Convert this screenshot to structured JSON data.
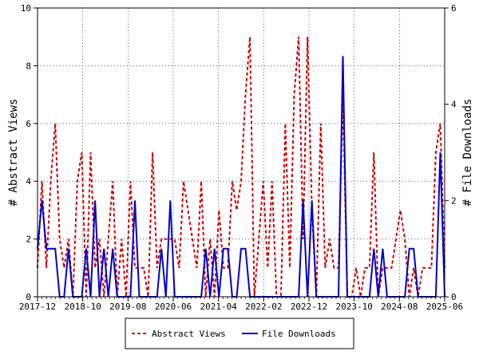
{
  "chart_data": {
    "type": "line",
    "title": "",
    "ylabel_left": "# Abstract Views",
    "ylabel_right": "# File Downloads",
    "x_ticks": [
      "2017-12",
      "2018-10",
      "2019-08",
      "2020-06",
      "2021-04",
      "2022-02",
      "2022-12",
      "2023-10",
      "2024-08",
      "2025-06"
    ],
    "x_range": [
      "2017-12",
      "2025-06"
    ],
    "ylim_left": [
      0,
      10
    ],
    "ylim_right": [
      0,
      6
    ],
    "y_ticks_left": [
      "0",
      "2",
      "4",
      "6",
      "8",
      "10"
    ],
    "y_ticks_right": [
      "0",
      "2",
      "4",
      "6"
    ],
    "legend_position": "bottom-center",
    "colors": {
      "abstract_views": "#cc0000",
      "file_downloads": "#0000cc"
    },
    "series": [
      {
        "name": "Abstract Views",
        "axis": "left",
        "style": "dashed",
        "values": [
          1,
          4,
          1,
          4,
          6,
          2,
          1,
          2,
          0,
          4,
          5,
          0,
          5,
          1,
          2,
          0,
          2,
          4,
          0,
          2,
          0,
          4,
          1,
          1,
          1,
          0,
          5,
          1,
          2,
          2,
          2,
          2,
          1,
          4,
          3,
          2,
          1,
          4,
          0,
          2,
          0,
          3,
          1,
          1,
          4,
          3,
          4,
          7,
          9,
          0,
          2,
          4,
          1,
          4,
          0,
          0,
          6,
          1,
          7,
          9,
          2,
          9,
          3,
          0,
          6,
          1,
          2,
          1,
          1,
          7,
          0,
          0,
          1,
          0,
          1,
          1,
          5,
          0,
          1,
          1,
          1,
          2,
          3,
          2,
          0,
          1,
          0,
          1,
          1,
          1,
          5,
          6,
          1
        ]
      },
      {
        "name": "File Downloads",
        "axis": "right",
        "style": "solid",
        "values": [
          1,
          2,
          1,
          1,
          1,
          0,
          0,
          1,
          0,
          0,
          0,
          1,
          0,
          2,
          0,
          1,
          0,
          1,
          0,
          0,
          0,
          0,
          2,
          0,
          0,
          0,
          0,
          0,
          1,
          0,
          2,
          0,
          0,
          0,
          0,
          0,
          0,
          0,
          1,
          0,
          1,
          0,
          1,
          1,
          0,
          0,
          1,
          1,
          0,
          0,
          0,
          0,
          0,
          0,
          0,
          0,
          0,
          0,
          0,
          0,
          2,
          0,
          2,
          0,
          0,
          0,
          0,
          0,
          0,
          5,
          0,
          0,
          0,
          0,
          0,
          0,
          1,
          0,
          1,
          0,
          0,
          0,
          0,
          0,
          1,
          1,
          0,
          0,
          0,
          0,
          0,
          3,
          0
        ]
      }
    ]
  }
}
